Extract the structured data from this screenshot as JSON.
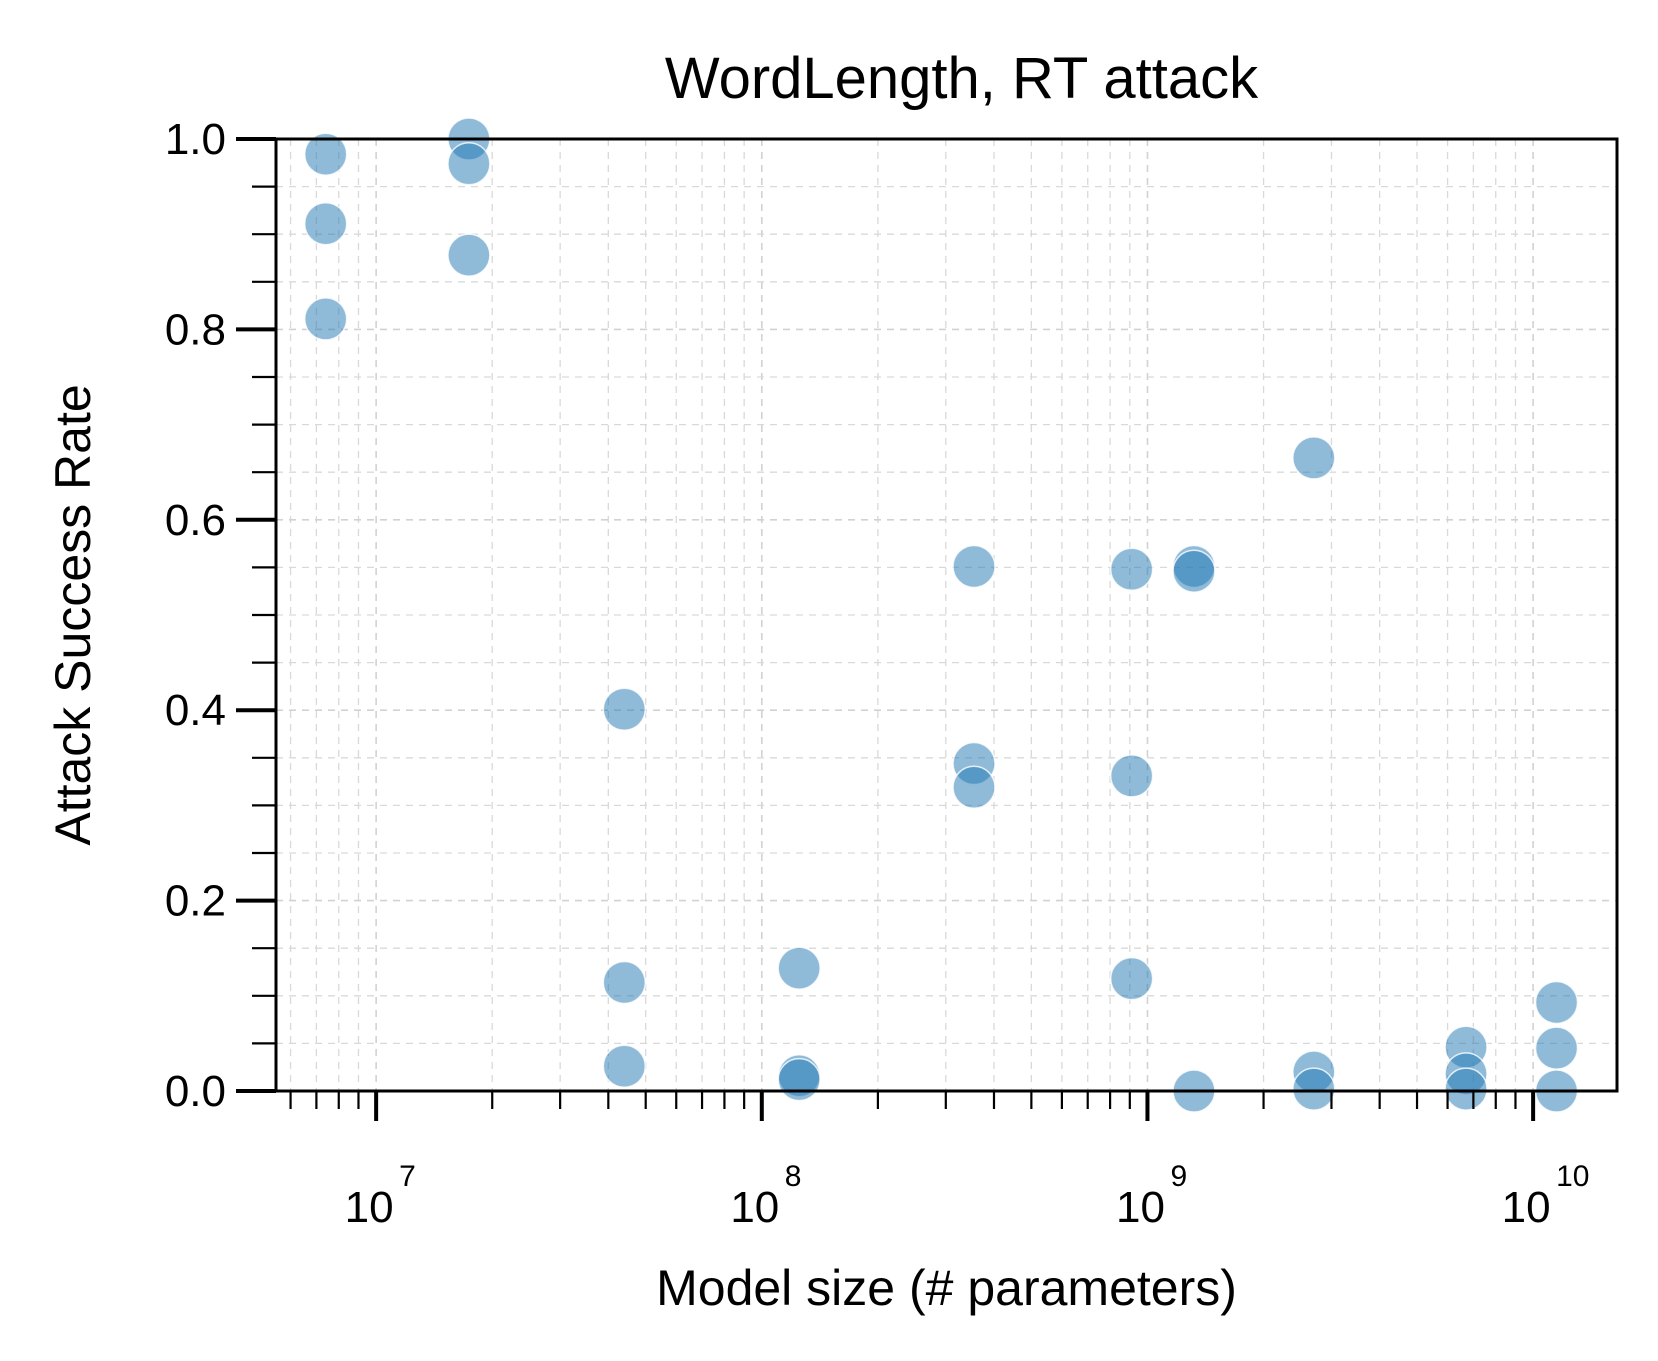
{
  "chart_data": {
    "type": "scatter",
    "title": "WordLength, RT attack",
    "xlabel": "Model size (# parameters)",
    "ylabel": "Attack Success Rate",
    "xscale": "log",
    "xlim": [
      5500000.0,
      16500000000.0
    ],
    "ylim": [
      0,
      1
    ],
    "x_ticks": [
      {
        "value": 10000000.0,
        "base": "10",
        "exp": "7"
      },
      {
        "value": 100000000.0,
        "base": "10",
        "exp": "8"
      },
      {
        "value": 1000000000.0,
        "base": "10",
        "exp": "9"
      },
      {
        "value": 10000000000.0,
        "base": "10",
        "exp": "10"
      }
    ],
    "y_ticks": [
      {
        "value": 0.0,
        "label": "0.0"
      },
      {
        "value": 0.2,
        "label": "0.2"
      },
      {
        "value": 0.4,
        "label": "0.4"
      },
      {
        "value": 0.6,
        "label": "0.6"
      },
      {
        "value": 0.8,
        "label": "0.8"
      },
      {
        "value": 1.0,
        "label": "1.0"
      }
    ],
    "grid": true,
    "color": "#1f77b4",
    "points": [
      {
        "x": 7400000.0,
        "y": 0.984
      },
      {
        "x": 7400000.0,
        "y": 0.911
      },
      {
        "x": 7400000.0,
        "y": 0.811
      },
      {
        "x": 17400000.0,
        "y": 1.0
      },
      {
        "x": 17400000.0,
        "y": 0.974
      },
      {
        "x": 17400000.0,
        "y": 0.878
      },
      {
        "x": 44000000.0,
        "y": 0.401
      },
      {
        "x": 44000000.0,
        "y": 0.114
      },
      {
        "x": 44000000.0,
        "y": 0.026
      },
      {
        "x": 125000000.0,
        "y": 0.129
      },
      {
        "x": 125000000.0,
        "y": 0.016
      },
      {
        "x": 125000000.0,
        "y": 0.012
      },
      {
        "x": 355000000.0,
        "y": 0.551
      },
      {
        "x": 355000000.0,
        "y": 0.344
      },
      {
        "x": 355000000.0,
        "y": 0.319
      },
      {
        "x": 910000000.0,
        "y": 0.548
      },
      {
        "x": 910000000.0,
        "y": 0.331
      },
      {
        "x": 910000000.0,
        "y": 0.118
      },
      {
        "x": 1320000000.0,
        "y": 0.551
      },
      {
        "x": 1320000000.0,
        "y": 0.546
      },
      {
        "x": 1320000000.0,
        "y": 0.0
      },
      {
        "x": 2700000000.0,
        "y": 0.665
      },
      {
        "x": 2700000000.0,
        "y": 0.02
      },
      {
        "x": 2700000000.0,
        "y": 0.002
      },
      {
        "x": 6700000000.0,
        "y": 0.046
      },
      {
        "x": 6700000000.0,
        "y": 0.018
      },
      {
        "x": 6700000000.0,
        "y": 0.002
      },
      {
        "x": 11500000000.0,
        "y": 0.093
      },
      {
        "x": 11500000000.0,
        "y": 0.045
      },
      {
        "x": 11500000000.0,
        "y": 0.0
      }
    ]
  }
}
